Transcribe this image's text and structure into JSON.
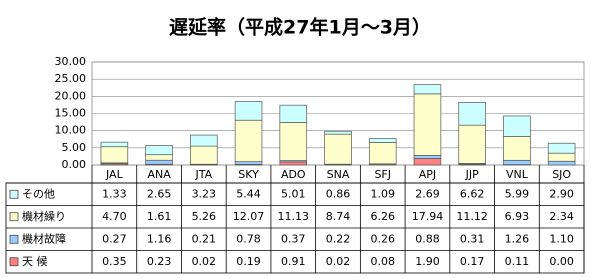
{
  "chart_data": {
    "type": "stacked_bar",
    "title": "遅延率（平成27年1月～3月）",
    "categories": [
      "JAL",
      "ANA",
      "JTA",
      "SKY",
      "ADO",
      "SNA",
      "SFJ",
      "APJ",
      "JJP",
      "VNL",
      "SJO"
    ],
    "series": [
      {
        "name": "その他",
        "color": "#ccffff",
        "values": [
          1.33,
          2.65,
          3.23,
          5.44,
          5.01,
          0.86,
          1.09,
          2.69,
          6.62,
          5.99,
          2.9
        ],
        "value_labels": [
          "1.33",
          "2.65",
          "3.23",
          "5.44",
          "5.01",
          "0.86",
          "1.09",
          "2.69",
          "6.62",
          "5.99",
          "2.90"
        ]
      },
      {
        "name": "機材繰り",
        "color": "#ffffcc",
        "values": [
          4.7,
          1.61,
          5.26,
          12.07,
          11.13,
          8.74,
          6.26,
          17.94,
          11.12,
          6.93,
          2.34
        ],
        "value_labels": [
          "4.70",
          "1.61",
          "5.26",
          "12.07",
          "11.13",
          "8.74",
          "6.26",
          "17.94",
          "11.12",
          "6.93",
          "2.34"
        ]
      },
      {
        "name": "機材故障",
        "color": "#99ccff",
        "values": [
          0.27,
          1.16,
          0.21,
          0.78,
          0.37,
          0.22,
          0.26,
          0.88,
          0.31,
          1.26,
          1.1
        ],
        "value_labels": [
          "0.27",
          "1.16",
          "0.21",
          "0.78",
          "0.37",
          "0.22",
          "0.26",
          "0.88",
          "0.31",
          "1.26",
          "1.10"
        ]
      },
      {
        "name": "天 候",
        "color": "#ff8080",
        "values": [
          0.35,
          0.23,
          0.02,
          0.19,
          0.91,
          0.02,
          0.08,
          1.9,
          0.17,
          0.11,
          0
        ],
        "value_labels": [
          "0.35",
          "0.23",
          "0.02",
          "0.19",
          "0.91",
          "0.02",
          "0.08",
          "1.90",
          "0.17",
          "0.11",
          "0.00"
        ]
      }
    ],
    "ylim": [
      0,
      30
    ],
    "yticks": [
      {
        "value": 0,
        "label": "0.00"
      },
      {
        "value": 5,
        "label": "5.00"
      },
      {
        "value": 10,
        "label": "10.00"
      },
      {
        "value": 15,
        "label": "15.00"
      },
      {
        "value": 20,
        "label": "20.00"
      },
      {
        "value": 25,
        "label": "25.00"
      },
      {
        "value": 30,
        "label": "30.00"
      }
    ],
    "grid": true
  }
}
